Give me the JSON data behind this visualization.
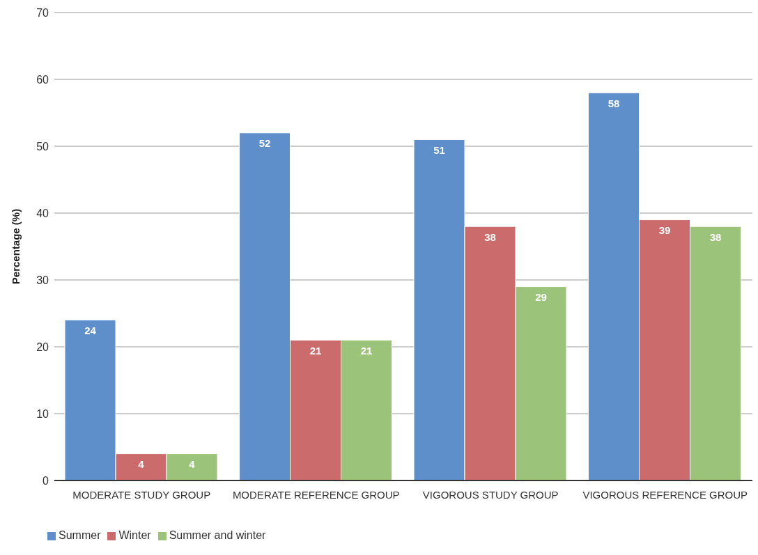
{
  "chart_data": {
    "type": "bar",
    "ylabel": "Percentage (%)",
    "categories": [
      "MODERATE STUDY GROUP",
      "MODERATE REFERENCE GROUP",
      "VIGOROUS STUDY GROUP",
      "VIGOROUS REFERENCE GROUP"
    ],
    "series": [
      {
        "name": "Summer",
        "color": "#5f8fcb",
        "values": [
          24,
          52,
          51,
          58
        ]
      },
      {
        "name": "Winter",
        "color": "#cc6b6b",
        "values": [
          4,
          21,
          38,
          39
        ]
      },
      {
        "name": "Summer and winter",
        "color": "#9bc47a",
        "values": [
          4,
          21,
          29,
          38
        ]
      }
    ],
    "ylim": [
      0,
      70
    ],
    "yticks": [
      0,
      10,
      20,
      30,
      40,
      50,
      60,
      70
    ],
    "grid": "y",
    "legend": "bottom left",
    "data_labels": true
  }
}
